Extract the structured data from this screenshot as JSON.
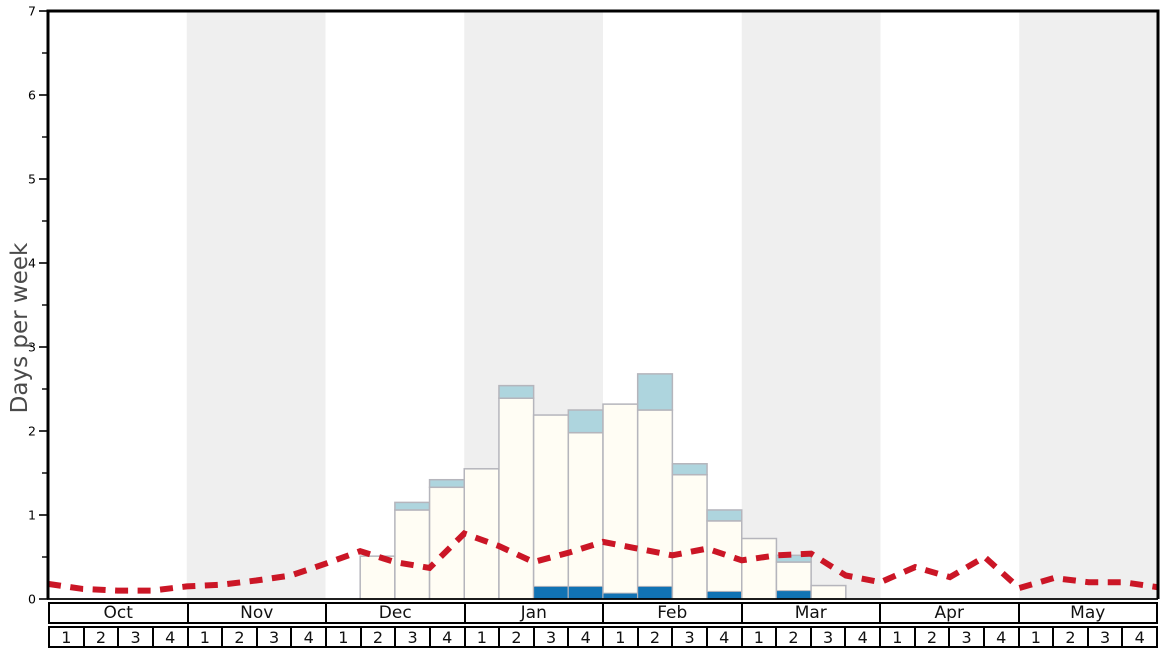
{
  "chart_data": {
    "type": "bar",
    "title": "",
    "ylabel": "Days per week",
    "ylim": [
      0,
      7
    ],
    "y_tick_labels": [
      "0",
      "1",
      "2",
      "3",
      "4",
      "5",
      "6",
      "7"
    ],
    "y_minor_step": 0.5,
    "grid": false,
    "legend": "none",
    "months": [
      "Oct",
      "Nov",
      "Dec",
      "Jan",
      "Feb",
      "Mar",
      "Apr",
      "May"
    ],
    "week_labels": [
      "1",
      "2",
      "3",
      "4"
    ],
    "weeks_per_month": 4,
    "shaded_month_indices": [
      1,
      3,
      5,
      7
    ],
    "bars": {
      "note": "32 weekly stacked bars; segment heights bottom-to-top in days/week",
      "series_order": [
        "dark_blue",
        "white",
        "light_blue"
      ],
      "values": [
        [
          0,
          0,
          0
        ],
        [
          0,
          0,
          0
        ],
        [
          0,
          0,
          0
        ],
        [
          0,
          0,
          0
        ],
        [
          0,
          0,
          0
        ],
        [
          0,
          0,
          0
        ],
        [
          0,
          0,
          0
        ],
        [
          0,
          0,
          0
        ],
        [
          0,
          0,
          0
        ],
        [
          0,
          0.51,
          0
        ],
        [
          0,
          1.06,
          0.09
        ],
        [
          0,
          1.33,
          0.09
        ],
        [
          0,
          1.55,
          0
        ],
        [
          0,
          2.39,
          0.15
        ],
        [
          0.15,
          2.04,
          0
        ],
        [
          0.15,
          1.83,
          0.27
        ],
        [
          0.07,
          2.25,
          0
        ],
        [
          0.15,
          2.1,
          0.43
        ],
        [
          0,
          1.48,
          0.13
        ],
        [
          0.09,
          0.84,
          0.13
        ],
        [
          0,
          0.72,
          0
        ],
        [
          0.1,
          0.34,
          0.08
        ],
        [
          0,
          0.16,
          0
        ],
        [
          0,
          0,
          0
        ],
        [
          0,
          0,
          0
        ],
        [
          0,
          0,
          0
        ],
        [
          0,
          0,
          0
        ],
        [
          0,
          0,
          0
        ],
        [
          0,
          0,
          0
        ],
        [
          0,
          0,
          0
        ],
        [
          0,
          0,
          0
        ],
        [
          0,
          0,
          0
        ]
      ]
    },
    "line": {
      "name": "red_dashed_line",
      "x_positions": "week_boundaries_0_to_32",
      "values": [
        0.18,
        0.12,
        0.1,
        0.1,
        0.15,
        0.17,
        0.22,
        0.28,
        0.42,
        0.57,
        0.44,
        0.37,
        0.78,
        0.63,
        0.44,
        0.55,
        0.68,
        0.6,
        0.52,
        0.6,
        0.46,
        0.52,
        0.54,
        0.28,
        0.2,
        0.38,
        0.26,
        0.5,
        0.13,
        0.25,
        0.2,
        0.2,
        0.14
      ]
    },
    "colors": {
      "bar_white": "#fffdf4",
      "bar_light_blue": "#aed5de",
      "bar_dark_blue": "#1173b4",
      "bar_border": "#b5b5bc",
      "line_red": "#cb1626",
      "band_gray": "#efefef",
      "axis": "#000000",
      "ylabel_color": "#4a4a4a"
    }
  }
}
